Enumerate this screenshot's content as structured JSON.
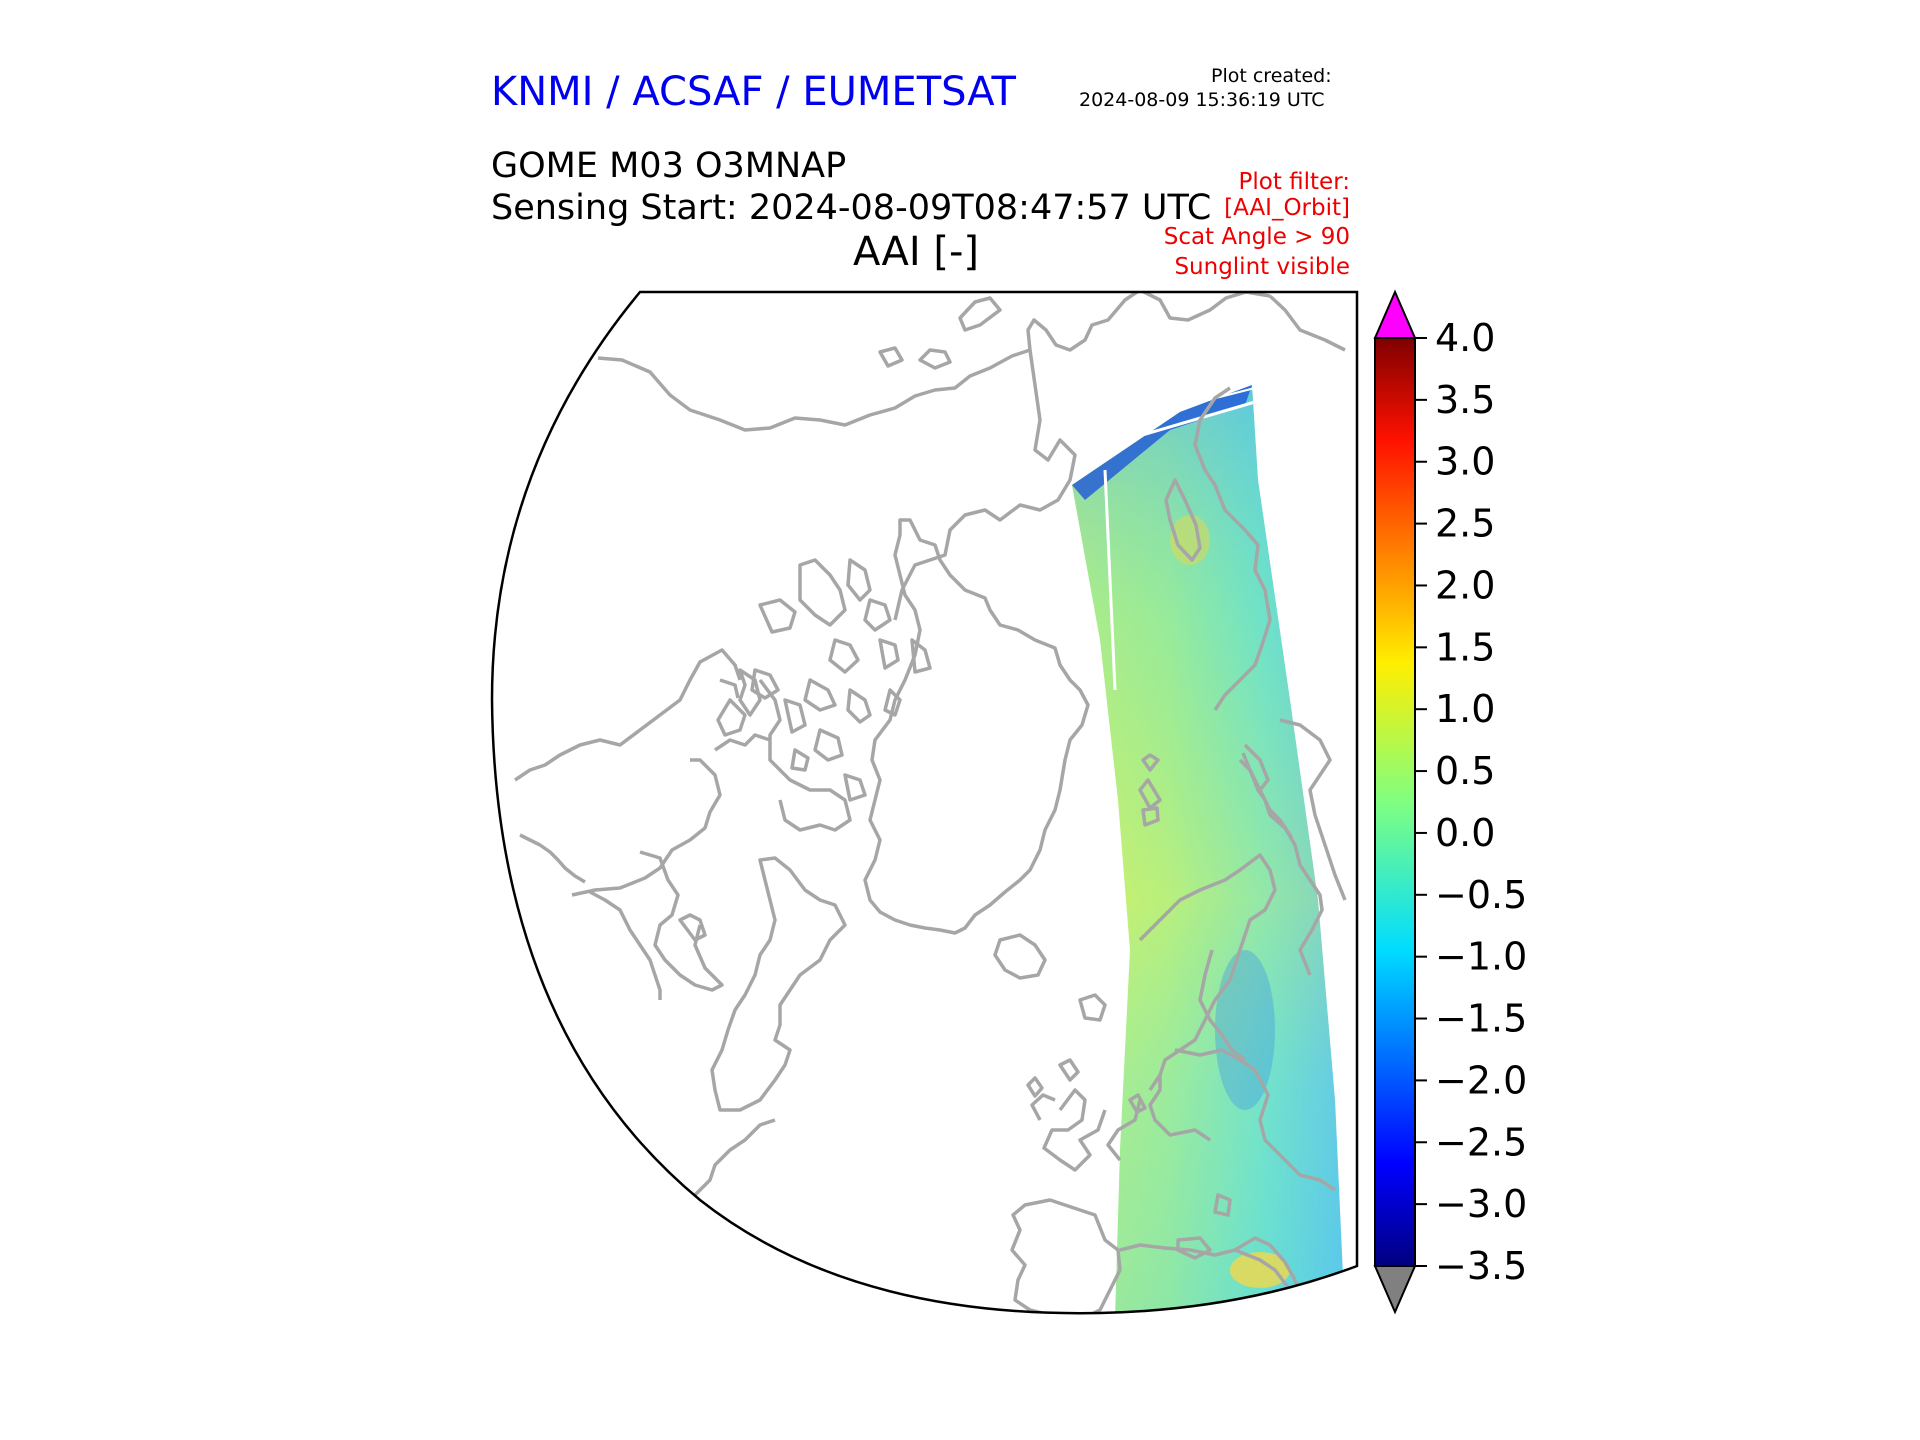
{
  "header": {
    "organization": "KNMI / ACSAF / EUMETSAT",
    "plot_created_label": "Plot created:",
    "plot_created_value": "2024-08-09 15:36:19 UTC",
    "product": "GOME M03 O3MNAP",
    "sensing_start": "Sensing Start: 2024-08-09T08:47:57 UTC",
    "variable": "AAI [-]"
  },
  "filter": {
    "lines": [
      "Plot filter:",
      "[AAI_Orbit]",
      "Scat Angle > 90",
      "Sunglint visible"
    ]
  },
  "colorbar": {
    "ticks": [
      "4.0",
      "3.5",
      "3.0",
      "2.5",
      "2.0",
      "1.5",
      "1.0",
      "0.5",
      "0.0",
      "−0.5",
      "−1.0",
      "−1.5",
      "−2.0",
      "−2.5",
      "−3.0",
      "−3.5"
    ],
    "min": -3.5,
    "max": 4.0,
    "over_color": "#ff00ff",
    "under_color": "#808080",
    "colormap": "jet"
  },
  "map": {
    "projection": "polar-stereographic",
    "coastline_color": "#a6a6a6",
    "swath_description": "single GOME orbit swath over Europe/Scandinavia/Arctic"
  }
}
